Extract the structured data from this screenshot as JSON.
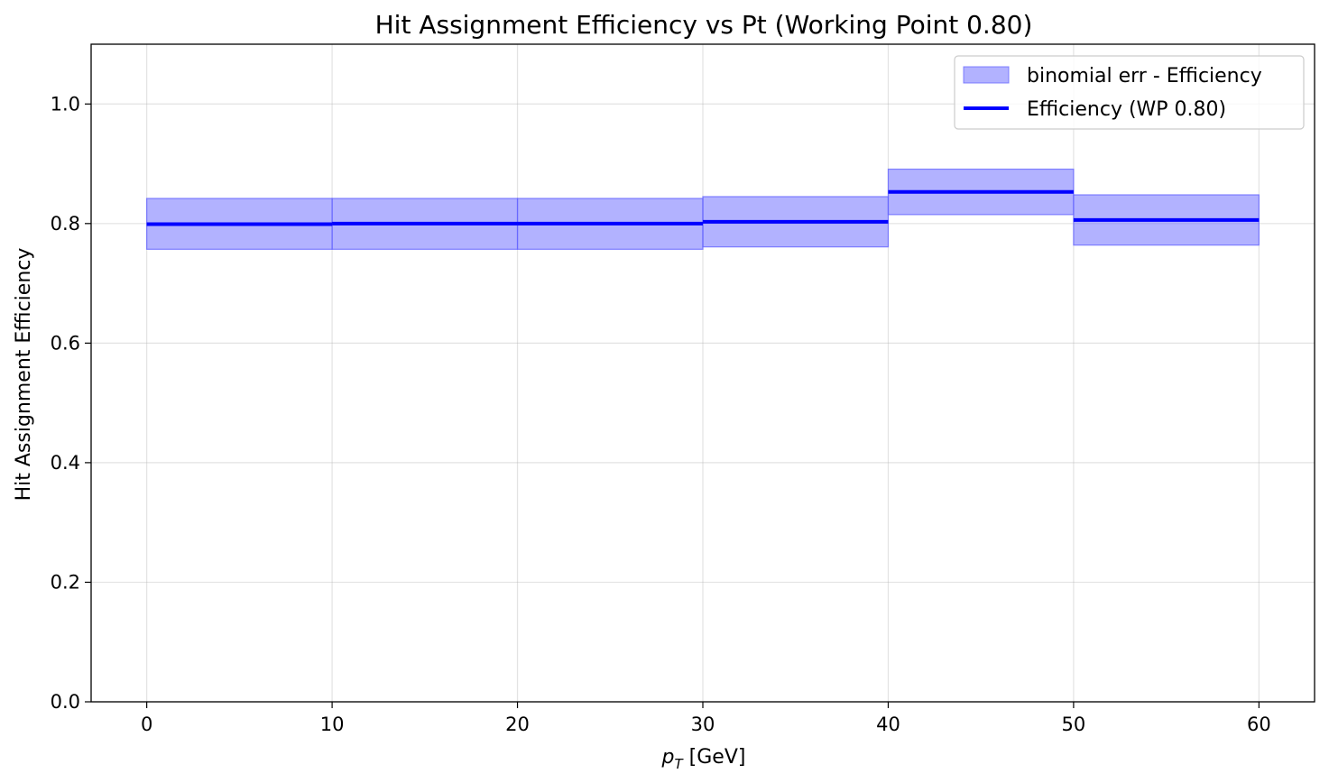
{
  "chart_data": {
    "type": "bar",
    "title": "Hit Assignment Efficiency vs Pt (Working Point 0.80)",
    "xlabel_main": "p",
    "xlabel_sub": "T",
    "xlabel_unit": " [GeV]",
    "ylabel": "Hit Assignment Efficiency",
    "xlim": [
      -3,
      63
    ],
    "ylim": [
      0.0,
      1.1
    ],
    "xticks": [
      0,
      10,
      20,
      30,
      40,
      50,
      60
    ],
    "xtick_labels": [
      "0",
      "10",
      "20",
      "30",
      "40",
      "50",
      "60"
    ],
    "yticks": [
      0.0,
      0.2,
      0.4,
      0.6,
      0.8,
      1.0
    ],
    "ytick_labels": [
      "0.0",
      "0.2",
      "0.4",
      "0.6",
      "0.8",
      "1.0"
    ],
    "grid": true,
    "legend_position": "top-right",
    "bins": [
      {
        "x_low": 0,
        "x_high": 10,
        "efficiency": 0.799,
        "err_low": 0.757,
        "err_high": 0.842
      },
      {
        "x_low": 10,
        "x_high": 20,
        "efficiency": 0.8,
        "err_low": 0.757,
        "err_high": 0.842
      },
      {
        "x_low": 20,
        "x_high": 30,
        "efficiency": 0.8,
        "err_low": 0.757,
        "err_high": 0.842
      },
      {
        "x_low": 30,
        "x_high": 40,
        "efficiency": 0.803,
        "err_low": 0.761,
        "err_high": 0.845
      },
      {
        "x_low": 40,
        "x_high": 50,
        "efficiency": 0.853,
        "err_low": 0.815,
        "err_high": 0.891
      },
      {
        "x_low": 50,
        "x_high": 60,
        "efficiency": 0.806,
        "err_low": 0.764,
        "err_high": 0.848
      }
    ],
    "series": [
      {
        "name": "binomial err - Efficiency",
        "kind": "band",
        "color": "#6666ff"
      },
      {
        "name": "Efficiency (WP 0.80)",
        "kind": "line",
        "color": "#0000ff"
      }
    ]
  }
}
